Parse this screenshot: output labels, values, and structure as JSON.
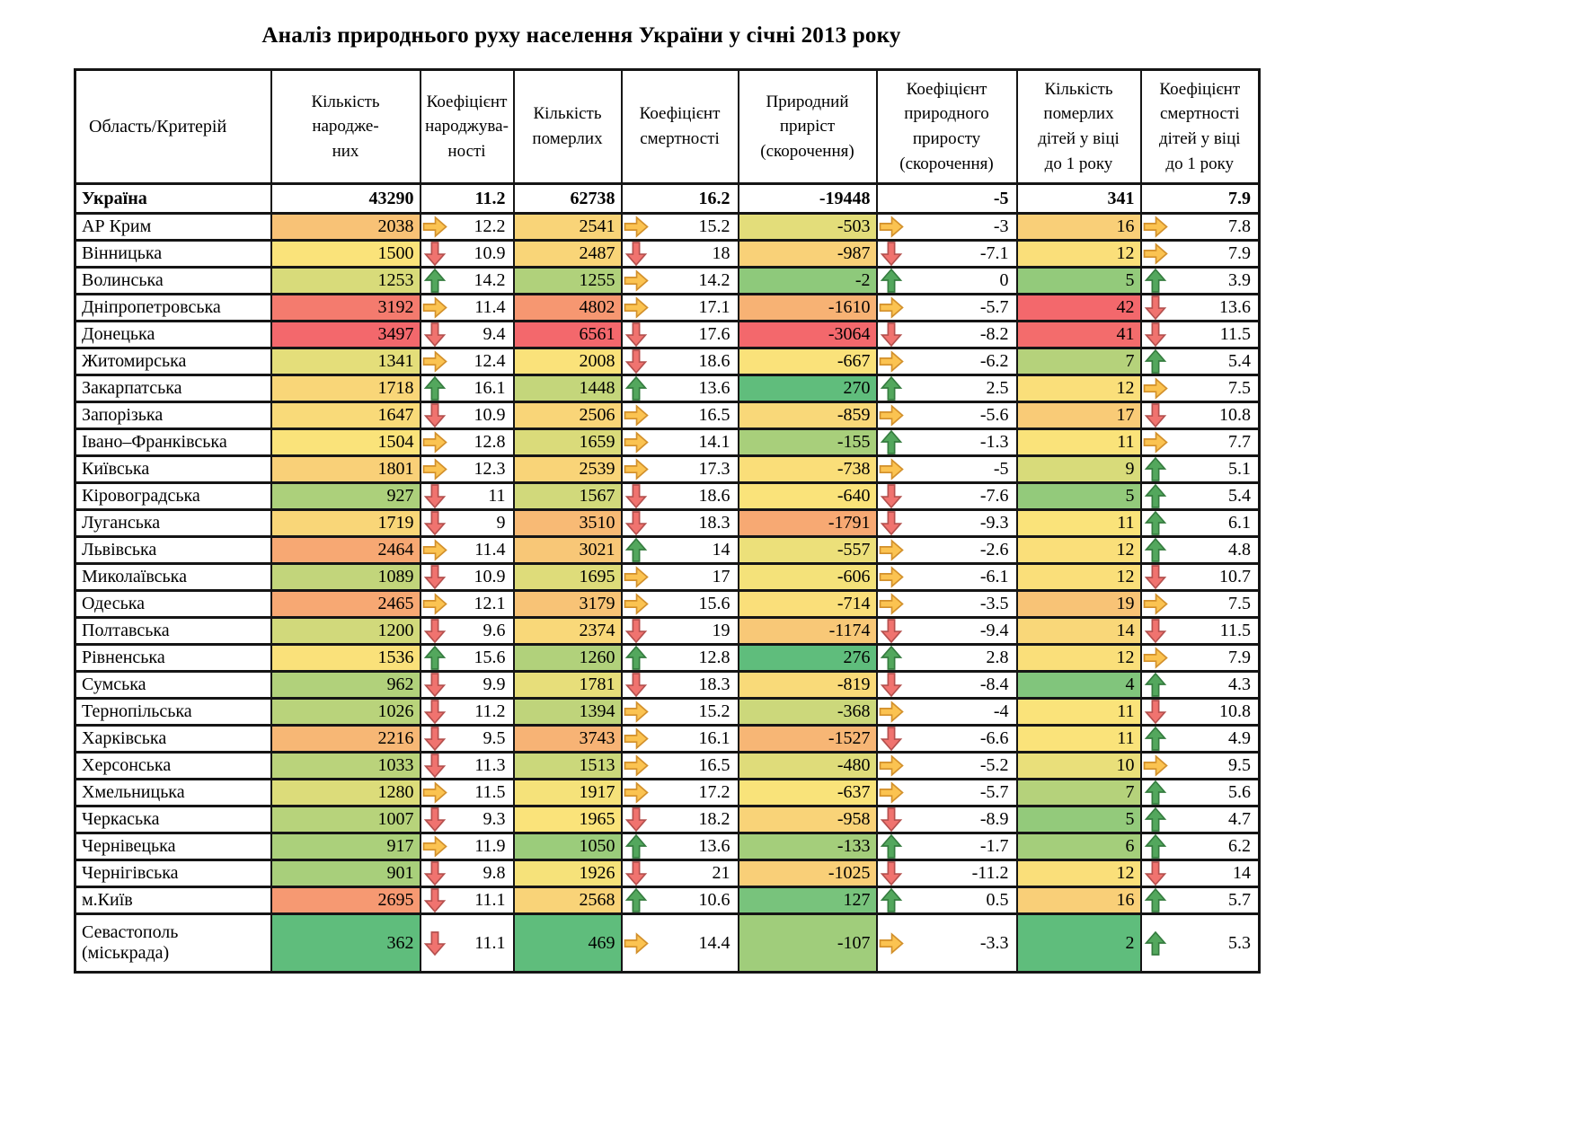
{
  "title": "Аналіз природнього руху населення України у січні  2013 року",
  "table": {
    "header": {
      "region": "Область/Критерій",
      "cols": [
        "Кількість\nнародже-\nних",
        "Коефіцієнт\nнароджува-\nності",
        "Кількість\nпомерлих",
        "Коефіцієнт\nсмертності",
        "Природний\nприріст\n(скорочення)",
        "Коефіцієнт\nприродного\nприросту\n(скорочення)",
        "Кількість\nпомерлих\nдітей у віці\nдо 1 року",
        "Коефіцієнт\nсмертності\nдітей у віці\nдо 1 року"
      ]
    },
    "totals_row": {
      "region": "Україна",
      "births": 43290,
      "birthRate": 11.2,
      "deaths": 62738,
      "deathRate": 16.2,
      "natural": -19448,
      "naturalRate": -5,
      "infantDeaths": 341,
      "infantRate": 7.9
    },
    "rows": [
      {
        "region": "АР Крим",
        "births": 2038,
        "birthTrend": "right",
        "birthRate": 12.2,
        "deaths": 2541,
        "deathTrend": "right",
        "deathRate": 15.2,
        "natural": -503,
        "naturalTrend": "right",
        "naturalRate": -3,
        "infantDeaths": 16,
        "infantTrend": "right",
        "infantRate": 7.8
      },
      {
        "region": "Вінницька",
        "births": 1500,
        "birthTrend": "down",
        "birthRate": 10.9,
        "deaths": 2487,
        "deathTrend": "down",
        "deathRate": 18,
        "natural": -987,
        "naturalTrend": "down",
        "naturalRate": -7.1,
        "infantDeaths": 12,
        "infantTrend": "right",
        "infantRate": 7.9
      },
      {
        "region": "Волинська",
        "births": 1253,
        "birthTrend": "up",
        "birthRate": 14.2,
        "deaths": 1255,
        "deathTrend": "right",
        "deathRate": 14.2,
        "natural": -2,
        "naturalTrend": "up",
        "naturalRate": 0,
        "infantDeaths": 5,
        "infantTrend": "up",
        "infantRate": 3.9
      },
      {
        "region": "Дніпропетровська",
        "births": 3192,
        "birthTrend": "right",
        "birthRate": 11.4,
        "deaths": 4802,
        "deathTrend": "right",
        "deathRate": 17.1,
        "natural": -1610,
        "naturalTrend": "right",
        "naturalRate": -5.7,
        "infantDeaths": 42,
        "infantTrend": "down",
        "infantRate": 13.6
      },
      {
        "region": "Донецька",
        "births": 3497,
        "birthTrend": "down",
        "birthRate": 9.4,
        "deaths": 6561,
        "deathTrend": "down",
        "deathRate": 17.6,
        "natural": -3064,
        "naturalTrend": "down",
        "naturalRate": -8.2,
        "infantDeaths": 41,
        "infantTrend": "down",
        "infantRate": 11.5
      },
      {
        "region": "Житомирська",
        "births": 1341,
        "birthTrend": "right",
        "birthRate": 12.4,
        "deaths": 2008,
        "deathTrend": "down",
        "deathRate": 18.6,
        "natural": -667,
        "naturalTrend": "right",
        "naturalRate": -6.2,
        "infantDeaths": 7,
        "infantTrend": "up",
        "infantRate": 5.4
      },
      {
        "region": "Закарпатська",
        "births": 1718,
        "birthTrend": "up",
        "birthRate": 16.1,
        "deaths": 1448,
        "deathTrend": "up",
        "deathRate": 13.6,
        "natural": 270,
        "naturalTrend": "up",
        "naturalRate": 2.5,
        "infantDeaths": 12,
        "infantTrend": "right",
        "infantRate": 7.5
      },
      {
        "region": "Запорізька",
        "births": 1647,
        "birthTrend": "down",
        "birthRate": 10.9,
        "deaths": 2506,
        "deathTrend": "right",
        "deathRate": 16.5,
        "natural": -859,
        "naturalTrend": "right",
        "naturalRate": -5.6,
        "infantDeaths": 17,
        "infantTrend": "down",
        "infantRate": 10.8
      },
      {
        "region": "Івано–Франківська",
        "births": 1504,
        "birthTrend": "right",
        "birthRate": 12.8,
        "deaths": 1659,
        "deathTrend": "right",
        "deathRate": 14.1,
        "natural": -155,
        "naturalTrend": "up",
        "naturalRate": -1.3,
        "infantDeaths": 11,
        "infantTrend": "right",
        "infantRate": 7.7
      },
      {
        "region": "Київська",
        "births": 1801,
        "birthTrend": "right",
        "birthRate": 12.3,
        "deaths": 2539,
        "deathTrend": "right",
        "deathRate": 17.3,
        "natural": -738,
        "naturalTrend": "right",
        "naturalRate": -5,
        "infantDeaths": 9,
        "infantTrend": "up",
        "infantRate": 5.1
      },
      {
        "region": "Кіровоградська",
        "births": 927,
        "birthTrend": "down",
        "birthRate": 11,
        "deaths": 1567,
        "deathTrend": "down",
        "deathRate": 18.6,
        "natural": -640,
        "naturalTrend": "down",
        "naturalRate": -7.6,
        "infantDeaths": 5,
        "infantTrend": "up",
        "infantRate": 5.4
      },
      {
        "region": "Луганська",
        "births": 1719,
        "birthTrend": "down",
        "birthRate": 9,
        "deaths": 3510,
        "deathTrend": "down",
        "deathRate": 18.3,
        "natural": -1791,
        "naturalTrend": "down",
        "naturalRate": -9.3,
        "infantDeaths": 11,
        "infantTrend": "up",
        "infantRate": 6.1
      },
      {
        "region": "Львівська",
        "births": 2464,
        "birthTrend": "right",
        "birthRate": 11.4,
        "deaths": 3021,
        "deathTrend": "up",
        "deathRate": 14,
        "natural": -557,
        "naturalTrend": "right",
        "naturalRate": -2.6,
        "infantDeaths": 12,
        "infantTrend": "up",
        "infantRate": 4.8
      },
      {
        "region": "Миколаївська",
        "births": 1089,
        "birthTrend": "down",
        "birthRate": 10.9,
        "deaths": 1695,
        "deathTrend": "right",
        "deathRate": 17,
        "natural": -606,
        "naturalTrend": "right",
        "naturalRate": -6.1,
        "infantDeaths": 12,
        "infantTrend": "down",
        "infantRate": 10.7
      },
      {
        "region": "Одеська",
        "births": 2465,
        "birthTrend": "right",
        "birthRate": 12.1,
        "deaths": 3179,
        "deathTrend": "right",
        "deathRate": 15.6,
        "natural": -714,
        "naturalTrend": "right",
        "naturalRate": -3.5,
        "infantDeaths": 19,
        "infantTrend": "right",
        "infantRate": 7.5
      },
      {
        "region": "Полтавська",
        "births": 1200,
        "birthTrend": "down",
        "birthRate": 9.6,
        "deaths": 2374,
        "deathTrend": "down",
        "deathRate": 19,
        "natural": -1174,
        "naturalTrend": "down",
        "naturalRate": -9.4,
        "infantDeaths": 14,
        "infantTrend": "down",
        "infantRate": 11.5
      },
      {
        "region": "Рівненська",
        "births": 1536,
        "birthTrend": "up",
        "birthRate": 15.6,
        "deaths": 1260,
        "deathTrend": "up",
        "deathRate": 12.8,
        "natural": 276,
        "naturalTrend": "up",
        "naturalRate": 2.8,
        "infantDeaths": 12,
        "infantTrend": "right",
        "infantRate": 7.9
      },
      {
        "region": "Сумська",
        "births": 962,
        "birthTrend": "down",
        "birthRate": 9.9,
        "deaths": 1781,
        "deathTrend": "down",
        "deathRate": 18.3,
        "natural": -819,
        "naturalTrend": "down",
        "naturalRate": -8.4,
        "infantDeaths": 4,
        "infantTrend": "up",
        "infantRate": 4.3
      },
      {
        "region": "Тернопільська",
        "births": 1026,
        "birthTrend": "down",
        "birthRate": 11.2,
        "deaths": 1394,
        "deathTrend": "right",
        "deathRate": 15.2,
        "natural": -368,
        "naturalTrend": "right",
        "naturalRate": -4,
        "infantDeaths": 11,
        "infantTrend": "down",
        "infantRate": 10.8
      },
      {
        "region": "Харківська",
        "births": 2216,
        "birthTrend": "down",
        "birthRate": 9.5,
        "deaths": 3743,
        "deathTrend": "right",
        "deathRate": 16.1,
        "natural": -1527,
        "naturalTrend": "down",
        "naturalRate": -6.6,
        "infantDeaths": 11,
        "infantTrend": "up",
        "infantRate": 4.9
      },
      {
        "region": "Херсонська",
        "births": 1033,
        "birthTrend": "down",
        "birthRate": 11.3,
        "deaths": 1513,
        "deathTrend": "right",
        "deathRate": 16.5,
        "natural": -480,
        "naturalTrend": "right",
        "naturalRate": -5.2,
        "infantDeaths": 10,
        "infantTrend": "right",
        "infantRate": 9.5
      },
      {
        "region": "Хмельницька",
        "births": 1280,
        "birthTrend": "right",
        "birthRate": 11.5,
        "deaths": 1917,
        "deathTrend": "right",
        "deathRate": 17.2,
        "natural": -637,
        "naturalTrend": "right",
        "naturalRate": -5.7,
        "infantDeaths": 7,
        "infantTrend": "up",
        "infantRate": 5.6
      },
      {
        "region": "Черкаська",
        "births": 1007,
        "birthTrend": "down",
        "birthRate": 9.3,
        "deaths": 1965,
        "deathTrend": "down",
        "deathRate": 18.2,
        "natural": -958,
        "naturalTrend": "down",
        "naturalRate": -8.9,
        "infantDeaths": 5,
        "infantTrend": "up",
        "infantRate": 4.7
      },
      {
        "region": "Чернівецька",
        "births": 917,
        "birthTrend": "right",
        "birthRate": 11.9,
        "deaths": 1050,
        "deathTrend": "up",
        "deathRate": 13.6,
        "natural": -133,
        "naturalTrend": "up",
        "naturalRate": -1.7,
        "infantDeaths": 6,
        "infantTrend": "up",
        "infantRate": 6.2
      },
      {
        "region": "Чернігівська",
        "births": 901,
        "birthTrend": "down",
        "birthRate": 9.8,
        "deaths": 1926,
        "deathTrend": "down",
        "deathRate": 21,
        "natural": -1025,
        "naturalTrend": "down",
        "naturalRate": -11.2,
        "infantDeaths": 12,
        "infantTrend": "down",
        "infantRate": 14
      },
      {
        "region": "м.Київ",
        "births": 2695,
        "birthTrend": "down",
        "birthRate": 11.1,
        "deaths": 2568,
        "deathTrend": "up",
        "deathRate": 10.6,
        "natural": 127,
        "naturalTrend": "up",
        "naturalRate": 0.5,
        "infantDeaths": 16,
        "infantTrend": "up",
        "infantRate": 5.7
      },
      {
        "region": "Севастополь\n(міськрада)",
        "tall": true,
        "births": 362,
        "birthTrend": "down",
        "birthRate": 11.1,
        "deaths": 469,
        "deathTrend": "right",
        "deathRate": 14.4,
        "natural": -107,
        "naturalTrend": "right",
        "naturalRate": -3.3,
        "infantDeaths": 2,
        "infantTrend": "up",
        "infantRate": 5.3
      }
    ]
  },
  "color_scales": {
    "births": {
      "min": 362,
      "mid": 1500,
      "max": 3497,
      "colors": [
        "#5FBD7C",
        "#FAE37A",
        "#F3686C"
      ]
    },
    "deaths": {
      "min": 469,
      "mid": 1965,
      "max": 6561,
      "colors": [
        "#5FBD7C",
        "#FAE37A",
        "#F3686C"
      ]
    },
    "natural": {
      "min": -3064,
      "mid": -640,
      "max": 276,
      "colors": [
        "#F3686C",
        "#FAE37A",
        "#5FBD7C"
      ]
    },
    "infant": {
      "min": 2,
      "mid": 11,
      "max": 42,
      "colors": [
        "#5FBD7C",
        "#FAE37A",
        "#F3686C"
      ]
    }
  },
  "trend_arrows": {
    "up": {
      "fill": "#53A75D",
      "stroke": "#357C3F"
    },
    "down": {
      "fill": "#F0736F",
      "stroke": "#B4504E"
    },
    "right": {
      "fill": "#FBC351",
      "stroke": "#D2902C"
    }
  }
}
